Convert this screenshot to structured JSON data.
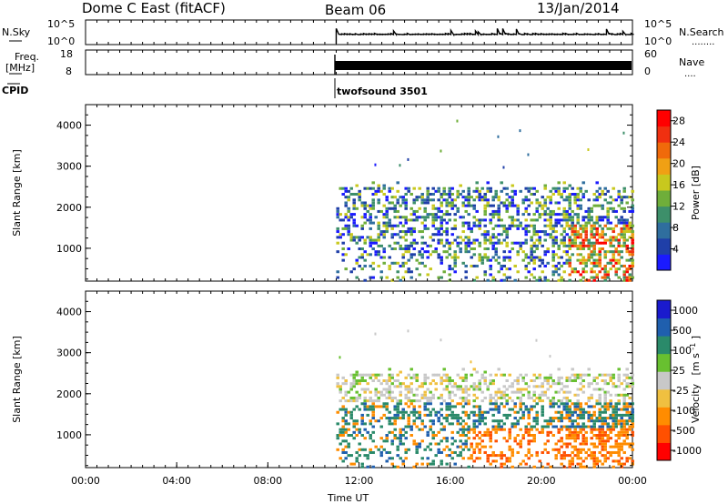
{
  "header": {
    "station": "Dome C East (fitACF)",
    "beam": "Beam 06",
    "date": "13/Jan/2014"
  },
  "left_labels": {
    "nsky": "N.Sky",
    "freq_line1": "Freq.",
    "freq_line2": "[MHz]",
    "cpid": "CPID"
  },
  "right_labels": {
    "nsearch": "N.Search",
    "nsearch_dots": "........",
    "nave": "Nave",
    "nave_dots": "...."
  },
  "cpid_text": "twofsound 3501",
  "colors": {
    "power": [
      "#1a1aff",
      "#1f3fa8",
      "#2f6e9e",
      "#3d8f6a",
      "#6fae3a",
      "#c8c81e",
      "#f0a014",
      "#f06a0a",
      "#f03010",
      "#ff0000"
    ],
    "velocity": [
      "#ff0000",
      "#ff5000",
      "#ff8c00",
      "#f0c040",
      "#c8c8c8",
      "#68c030",
      "#2a8a6a",
      "#1f5fae",
      "#1a1acd"
    ]
  },
  "chart_data": [
    {
      "type": "line",
      "title": "N.Sky / N.Search",
      "xlabel": "",
      "ylabel": "N.Sky",
      "yticks_left": [
        "10^5",
        "10^0"
      ],
      "yticks_right": [
        "10^5",
        "10^0"
      ],
      "x_start": "00:00",
      "x_end": "00:00",
      "data_start": "11:00",
      "series": [
        {
          "name": "N.Sky",
          "level": "about 10^0.8 from 11:00, with occasional spikes"
        }
      ]
    },
    {
      "type": "line",
      "title": "Freq. / Nave",
      "ylabel": "Freq. [MHz]",
      "yticks_left": [
        "18",
        "8"
      ],
      "yticks_right": [
        "60",
        "0"
      ],
      "data_start": "11:00",
      "series": [
        {
          "name": "Freq.",
          "range_mhz": [
            10,
            12
          ]
        }
      ]
    },
    {
      "type": "heatmap",
      "title": "Power",
      "xlabel": "",
      "ylabel": "Slant Range [km]",
      "yticks": [
        "1000",
        "2000",
        "3000",
        "4000"
      ],
      "ylim": [
        200,
        4500
      ],
      "colorbar_label": "Power [dB]",
      "colorbar_ticks": [
        "4",
        "8",
        "12",
        "16",
        "20",
        "24",
        "28"
      ],
      "colorbar_range": [
        0,
        30
      ],
      "data_start": "11:00",
      "data_end": "24:00"
    },
    {
      "type": "heatmap",
      "title": "Velocity",
      "xlabel": "Time UT",
      "ylabel": "Slant Range [km]",
      "yticks": [
        "1000",
        "2000",
        "3000",
        "4000"
      ],
      "ylim": [
        200,
        4500
      ],
      "colorbar_label": "Velocity",
      "colorbar_unit": "[m s",
      "colorbar_unit_exp": "-1",
      "colorbar_unit_end": "]",
      "colorbar_ticks": [
        "1000",
        "500",
        "100",
        "25",
        "-25",
        "-100",
        "-500",
        "-1000"
      ],
      "xticks": [
        "00:00",
        "04:00",
        "08:00",
        "12:00",
        "16:00",
        "20:00",
        "00:00"
      ],
      "data_start": "11:00",
      "data_end": "24:00"
    }
  ]
}
